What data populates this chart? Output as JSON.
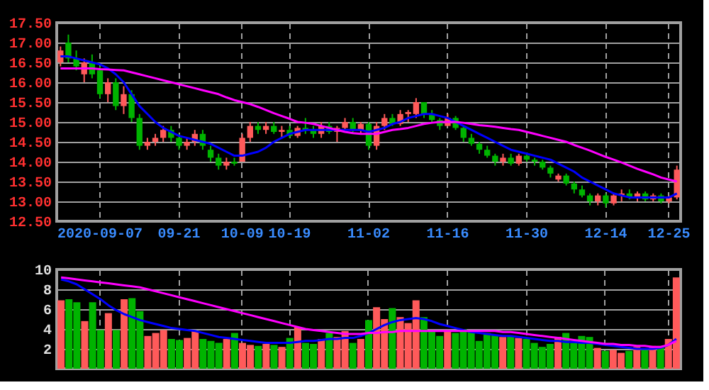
{
  "chart_data": [
    {
      "type": "candlestick",
      "categories": [
        null,
        null,
        null,
        null,
        null,
        "2020-09-07",
        null,
        null,
        null,
        null,
        null,
        null,
        null,
        null,
        null,
        "09-21",
        null,
        null,
        null,
        null,
        null,
        null,
        null,
        "10-09",
        null,
        null,
        null,
        null,
        null,
        "10-19",
        null,
        null,
        null,
        null,
        null,
        null,
        null,
        null,
        null,
        "11-02",
        null,
        null,
        null,
        null,
        null,
        null,
        null,
        null,
        null,
        "11-16",
        null,
        null,
        null,
        null,
        null,
        null,
        null,
        null,
        null,
        "11-30",
        null,
        null,
        null,
        null,
        null,
        null,
        null,
        null,
        null,
        "12-14",
        null,
        null,
        null,
        null,
        null,
        null,
        null,
        "12-25",
        null
      ],
      "ohlc": [
        [
          16.5,
          16.9,
          16.4,
          16.8
        ],
        [
          17.0,
          17.2,
          16.5,
          16.6
        ],
        [
          16.6,
          16.8,
          16.3,
          16.4
        ],
        [
          16.2,
          16.6,
          16.0,
          16.5
        ],
        [
          16.5,
          16.7,
          16.1,
          16.2
        ],
        [
          16.3,
          16.4,
          15.6,
          15.7
        ],
        [
          15.7,
          16.1,
          15.5,
          16.0
        ],
        [
          16.0,
          16.1,
          15.3,
          15.4
        ],
        [
          15.4,
          15.9,
          15.2,
          15.7
        ],
        [
          15.7,
          15.8,
          15.0,
          15.1
        ],
        [
          15.1,
          15.2,
          14.3,
          14.4
        ],
        [
          14.4,
          14.6,
          14.3,
          14.5
        ],
        [
          14.5,
          14.7,
          14.4,
          14.6
        ],
        [
          14.6,
          14.9,
          14.5,
          14.8
        ],
        [
          14.8,
          14.9,
          14.5,
          14.6
        ],
        [
          14.6,
          14.7,
          14.3,
          14.4
        ],
        [
          14.4,
          14.6,
          14.3,
          14.5
        ],
        [
          14.5,
          14.8,
          14.4,
          14.7
        ],
        [
          14.7,
          14.8,
          14.3,
          14.4
        ],
        [
          14.3,
          14.4,
          14.0,
          14.1
        ],
        [
          14.1,
          14.2,
          13.8,
          13.9
        ],
        [
          13.9,
          14.1,
          13.8,
          14.0
        ],
        [
          14.0,
          14.1,
          13.9,
          13.95
        ],
        [
          14.0,
          14.7,
          14.0,
          14.6
        ],
        [
          14.6,
          15.0,
          14.5,
          14.9
        ],
        [
          14.9,
          15.0,
          14.7,
          14.8
        ],
        [
          14.8,
          15.0,
          14.7,
          14.9
        ],
        [
          14.9,
          15.0,
          14.7,
          14.75
        ],
        [
          14.75,
          14.9,
          14.6,
          14.8
        ],
        [
          14.8,
          14.9,
          14.6,
          14.65
        ],
        [
          14.65,
          14.9,
          14.6,
          14.85
        ],
        [
          14.85,
          15.1,
          14.7,
          14.8
        ],
        [
          14.8,
          14.9,
          14.6,
          14.7
        ],
        [
          14.7,
          15.0,
          14.6,
          14.9
        ],
        [
          14.9,
          15.0,
          14.7,
          14.75
        ],
        [
          14.75,
          14.9,
          14.5,
          14.85
        ],
        [
          14.85,
          15.1,
          14.8,
          15.0
        ],
        [
          15.0,
          15.1,
          14.7,
          14.8
        ],
        [
          14.8,
          15.0,
          14.7,
          14.95
        ],
        [
          14.95,
          15.0,
          14.3,
          14.4
        ],
        [
          14.4,
          15.0,
          14.3,
          14.9
        ],
        [
          14.9,
          15.2,
          14.8,
          15.1
        ],
        [
          15.1,
          15.2,
          14.9,
          14.95
        ],
        [
          14.95,
          15.3,
          14.9,
          15.2
        ],
        [
          15.2,
          15.3,
          15.0,
          15.25
        ],
        [
          15.2,
          15.6,
          15.1,
          15.5
        ],
        [
          15.5,
          15.5,
          15.1,
          15.2
        ],
        [
          15.2,
          15.3,
          15.0,
          15.05
        ],
        [
          15.05,
          15.1,
          14.8,
          14.9
        ],
        [
          14.9,
          15.2,
          14.9,
          15.1
        ],
        [
          15.1,
          15.15,
          14.8,
          14.85
        ],
        [
          14.85,
          14.9,
          14.5,
          14.6
        ],
        [
          14.6,
          14.7,
          14.4,
          14.45
        ],
        [
          14.45,
          14.5,
          14.2,
          14.3
        ],
        [
          14.3,
          14.4,
          14.1,
          14.15
        ],
        [
          14.15,
          14.2,
          13.9,
          14.0
        ],
        [
          14.0,
          14.2,
          13.9,
          14.1
        ],
        [
          14.1,
          14.2,
          13.9,
          13.95
        ],
        [
          13.95,
          14.2,
          13.9,
          14.15
        ],
        [
          14.15,
          14.2,
          14.0,
          14.05
        ],
        [
          14.05,
          14.1,
          13.9,
          14.0
        ],
        [
          14.0,
          14.05,
          13.8,
          13.85
        ],
        [
          13.85,
          13.9,
          13.6,
          13.7
        ],
        [
          13.55,
          13.7,
          13.5,
          13.65
        ],
        [
          13.65,
          13.7,
          13.4,
          13.45
        ],
        [
          13.45,
          13.5,
          13.2,
          13.3
        ],
        [
          13.3,
          13.4,
          13.1,
          13.15
        ],
        [
          13.15,
          13.2,
          12.9,
          13.0
        ],
        [
          13.0,
          13.2,
          12.9,
          13.15
        ],
        [
          13.15,
          13.2,
          12.85,
          12.95
        ],
        [
          12.95,
          13.2,
          12.9,
          13.15
        ],
        [
          13.15,
          13.3,
          13.0,
          13.2
        ],
        [
          13.2,
          13.3,
          13.05,
          13.1
        ],
        [
          13.1,
          13.25,
          13.0,
          13.2
        ],
        [
          13.2,
          13.25,
          13.0,
          13.05
        ],
        [
          13.05,
          13.2,
          13.0,
          13.15
        ],
        [
          13.15,
          13.2,
          12.95,
          13.0
        ],
        [
          13.0,
          13.15,
          12.95,
          13.1
        ],
        [
          13.1,
          13.9,
          13.05,
          13.8
        ]
      ],
      "colors": [
        "#ff5a5a",
        "#00b400",
        "#00b400",
        "#ff5a5a",
        "#00b400",
        "#00b400",
        "#ff5a5a",
        "#00b400",
        "#ff5a5a",
        "#00b400",
        "#00b400",
        "#ff5a5a",
        "#ff5a5a",
        "#ff5a5a",
        "#00b400",
        "#00b400",
        "#ff5a5a",
        "#ff5a5a",
        "#00b400",
        "#00b400",
        "#00b400",
        "#ff5a5a",
        "#00b400",
        "#ff5a5a",
        "#ff5a5a",
        "#00b400",
        "#ff5a5a",
        "#00b400",
        "#ff5a5a",
        "#00b400",
        "#ff5a5a",
        "#00b400",
        "#00b400",
        "#ff5a5a",
        "#00b400",
        "#ff5a5a",
        "#ff5a5a",
        "#00b400",
        "#ff5a5a",
        "#00b400",
        "#ff5a5a",
        "#ff5a5a",
        "#00b400",
        "#ff5a5a",
        "#ff5a5a",
        "#ff5a5a",
        "#00b400",
        "#00b400",
        "#00b400",
        "#ff5a5a",
        "#00b400",
        "#00b400",
        "#00b400",
        "#00b400",
        "#00b400",
        "#00b400",
        "#ff5a5a",
        "#00b400",
        "#ff5a5a",
        "#00b400",
        "#00b400",
        "#00b400",
        "#00b400",
        "#ff5a5a",
        "#00b400",
        "#00b400",
        "#00b400",
        "#00b400",
        "#ff5a5a",
        "#00b400",
        "#ff5a5a",
        "#ff5a5a",
        "#00b400",
        "#ff5a5a",
        "#00b400",
        "#ff5a5a",
        "#00b400",
        "#ff5a5a",
        "#ff5a5a"
      ],
      "series": [
        {
          "type": "line",
          "color": "#0000ff",
          "values": [
            16.65,
            16.65,
            16.6,
            16.55,
            16.5,
            16.45,
            16.35,
            16.2,
            16.0,
            15.7,
            15.4,
            15.2,
            15.0,
            14.85,
            14.75,
            14.65,
            14.6,
            14.55,
            14.5,
            14.45,
            14.35,
            14.25,
            14.15,
            14.15,
            14.2,
            14.25,
            14.35,
            14.5,
            14.6,
            14.7,
            14.75,
            14.8,
            14.8,
            14.8,
            14.8,
            14.8,
            14.8,
            14.8,
            14.8,
            14.75,
            14.8,
            14.85,
            14.95,
            15.0,
            15.1,
            15.15,
            15.2,
            15.2,
            15.15,
            15.1,
            15.0,
            14.9,
            14.8,
            14.7,
            14.6,
            14.5,
            14.4,
            14.3,
            14.25,
            14.2,
            14.15,
            14.1,
            14.05,
            13.95,
            13.85,
            13.75,
            13.6,
            13.5,
            13.4,
            13.3,
            13.2,
            13.15,
            13.1,
            13.1,
            13.1,
            13.1,
            13.1,
            13.1,
            13.2
          ]
        },
        {
          "type": "line",
          "color": "#ff00ff",
          "values": [
            16.35,
            16.35,
            16.35,
            16.35,
            16.35,
            16.33,
            16.32,
            16.31,
            16.3,
            16.25,
            16.2,
            16.15,
            16.1,
            16.05,
            16.0,
            15.95,
            15.9,
            15.85,
            15.8,
            15.75,
            15.7,
            15.62,
            15.55,
            15.5,
            15.45,
            15.38,
            15.3,
            15.22,
            15.15,
            15.08,
            15.0,
            14.98,
            14.95,
            14.9,
            14.85,
            14.8,
            14.75,
            14.72,
            14.7,
            14.7,
            14.7,
            14.75,
            14.8,
            14.82,
            14.85,
            14.9,
            14.95,
            14.98,
            15.0,
            15.0,
            15.0,
            14.98,
            14.95,
            14.92,
            14.9,
            14.88,
            14.85,
            14.82,
            14.8,
            14.75,
            14.7,
            14.65,
            14.6,
            14.55,
            14.5,
            14.42,
            14.35,
            14.28,
            14.2,
            14.12,
            14.05,
            13.98,
            13.9,
            13.82,
            13.75,
            13.68,
            13.6,
            13.55,
            13.5
          ]
        }
      ],
      "ylim": [
        12.5,
        17.5
      ],
      "yticks": [
        {
          "value": 12.5,
          "label": "12.50"
        },
        {
          "value": 13,
          "label": "13.00"
        },
        {
          "value": 13.5,
          "label": "13.50"
        },
        {
          "value": 14,
          "label": "14.00"
        },
        {
          "value": 14.5,
          "label": "14.50"
        },
        {
          "value": 15,
          "label": "15.00"
        },
        {
          "value": 15.5,
          "label": "15.50"
        },
        {
          "value": 16,
          "label": "16.00"
        },
        {
          "value": 16.5,
          "label": "16.50"
        },
        {
          "value": 17,
          "label": "17.00"
        },
        {
          "value": 17.5,
          "label": "17.50"
        }
      ],
      "grid": true
    },
    {
      "type": "bar",
      "categories": [
        null,
        null,
        null,
        null,
        null,
        null,
        null,
        null,
        null,
        null,
        null,
        null,
        null,
        null,
        null,
        null,
        null,
        null,
        null,
        null,
        null,
        null,
        null,
        null,
        null,
        null,
        null,
        null,
        null,
        null,
        null,
        null,
        null,
        null,
        null,
        null,
        null,
        null,
        null,
        null,
        null,
        null,
        null,
        null,
        null,
        null,
        null,
        null,
        null,
        null,
        null,
        null,
        null,
        null,
        null,
        null,
        null,
        null,
        null,
        null,
        null,
        null,
        null,
        null,
        null,
        null,
        null,
        null,
        null,
        null,
        null,
        null,
        null,
        null,
        null,
        null,
        null,
        null,
        null
      ],
      "values": [
        6.9,
        7.0,
        6.7,
        4.8,
        6.7,
        3.9,
        5.6,
        3.9,
        7.0,
        7.1,
        5.8,
        3.3,
        3.6,
        3.9,
        3.0,
        2.9,
        3.1,
        3.8,
        3.0,
        2.8,
        2.6,
        3.0,
        3.6,
        2.6,
        2.4,
        2.3,
        2.5,
        2.4,
        2.2,
        3.1,
        4.2,
        2.6,
        2.5,
        3.0,
        3.6,
        3.2,
        3.8,
        2.6,
        3.0,
        4.9,
        6.2,
        5.0,
        6.1,
        5.2,
        4.6,
        6.9,
        5.2,
        3.8,
        3.3,
        3.9,
        3.6,
        4.0,
        3.8,
        2.8,
        3.6,
        3.4,
        3.2,
        3.3,
        3.1,
        3.0,
        2.6,
        2.2,
        2.5,
        3.2,
        3.6,
        2.6,
        3.3,
        3.2,
        2.1,
        1.8,
        1.9,
        1.6,
        1.8,
        2.2,
        1.9,
        2.3,
        2.3,
        3.0,
        9.2
      ],
      "colors": [
        "#ff5a5a",
        "#00b400",
        "#00b400",
        "#ff5a5a",
        "#00b400",
        "#00b400",
        "#ff5a5a",
        "#00b400",
        "#ff5a5a",
        "#00b400",
        "#00b400",
        "#ff5a5a",
        "#ff5a5a",
        "#ff5a5a",
        "#00b400",
        "#00b400",
        "#ff5a5a",
        "#ff5a5a",
        "#00b400",
        "#00b400",
        "#00b400",
        "#ff5a5a",
        "#00b400",
        "#ff5a5a",
        "#ff5a5a",
        "#00b400",
        "#ff5a5a",
        "#00b400",
        "#ff5a5a",
        "#00b400",
        "#ff5a5a",
        "#00b400",
        "#00b400",
        "#ff5a5a",
        "#00b400",
        "#ff5a5a",
        "#ff5a5a",
        "#00b400",
        "#ff5a5a",
        "#00b400",
        "#ff5a5a",
        "#ff5a5a",
        "#00b400",
        "#ff5a5a",
        "#ff5a5a",
        "#ff5a5a",
        "#00b400",
        "#00b400",
        "#00b400",
        "#ff5a5a",
        "#00b400",
        "#00b400",
        "#00b400",
        "#00b400",
        "#00b400",
        "#00b400",
        "#ff5a5a",
        "#00b400",
        "#ff5a5a",
        "#00b400",
        "#00b400",
        "#00b400",
        "#00b400",
        "#ff5a5a",
        "#00b400",
        "#00b400",
        "#00b400",
        "#00b400",
        "#ff5a5a",
        "#00b400",
        "#ff5a5a",
        "#ff5a5a",
        "#00b400",
        "#ff5a5a",
        "#00b400",
        "#ff5a5a",
        "#00b400",
        "#ff5a5a",
        "#ff5a5a"
      ],
      "series": [
        {
          "type": "line",
          "color": "#0000ff",
          "values": [
            9.0,
            8.8,
            8.5,
            8.0,
            7.5,
            7.0,
            6.4,
            5.9,
            5.5,
            5.2,
            4.9,
            4.7,
            4.5,
            4.3,
            4.1,
            4.0,
            3.9,
            3.8,
            3.6,
            3.4,
            3.2,
            3.1,
            3.0,
            2.9,
            2.8,
            2.7,
            2.6,
            2.6,
            2.6,
            2.6,
            2.7,
            2.8,
            2.8,
            2.9,
            3.0,
            3.0,
            3.1,
            3.1,
            3.3,
            3.6,
            4.0,
            4.4,
            4.7,
            4.9,
            5.0,
            5.1,
            5.0,
            4.8,
            4.5,
            4.3,
            4.1,
            3.9,
            3.7,
            3.6,
            3.5,
            3.4,
            3.3,
            3.3,
            3.2,
            3.1,
            3.0,
            2.9,
            2.8,
            2.8,
            2.7,
            2.7,
            2.6,
            2.6,
            2.5,
            2.4,
            2.3,
            2.2,
            2.1,
            2.0,
            2.0,
            2.0,
            2.1,
            2.4,
            3.0
          ]
        },
        {
          "type": "line",
          "color": "#ff00ff",
          "values": [
            9.2,
            9.1,
            9.0,
            8.9,
            8.8,
            8.7,
            8.6,
            8.5,
            8.4,
            8.3,
            8.2,
            8.0,
            7.8,
            7.6,
            7.4,
            7.2,
            7.0,
            6.8,
            6.6,
            6.4,
            6.2,
            6.0,
            5.8,
            5.6,
            5.4,
            5.2,
            5.0,
            4.8,
            4.6,
            4.4,
            4.2,
            4.0,
            3.9,
            3.8,
            3.7,
            3.6,
            3.5,
            3.5,
            3.5,
            3.6,
            3.6,
            3.7,
            3.7,
            3.8,
            3.8,
            3.8,
            3.8,
            3.8,
            3.8,
            3.8,
            3.8,
            3.8,
            3.8,
            3.8,
            3.8,
            3.8,
            3.7,
            3.7,
            3.6,
            3.5,
            3.4,
            3.3,
            3.2,
            3.1,
            3.0,
            2.9,
            2.8,
            2.7,
            2.6,
            2.5,
            2.5,
            2.4,
            2.4,
            2.3,
            2.3,
            2.2,
            2.2,
            2.4,
            2.8
          ]
        }
      ],
      "ylim": [
        0,
        10
      ],
      "yticks": [
        2,
        4,
        6,
        8,
        10
      ],
      "grid": true,
      "tick_labels": "y"
    }
  ]
}
